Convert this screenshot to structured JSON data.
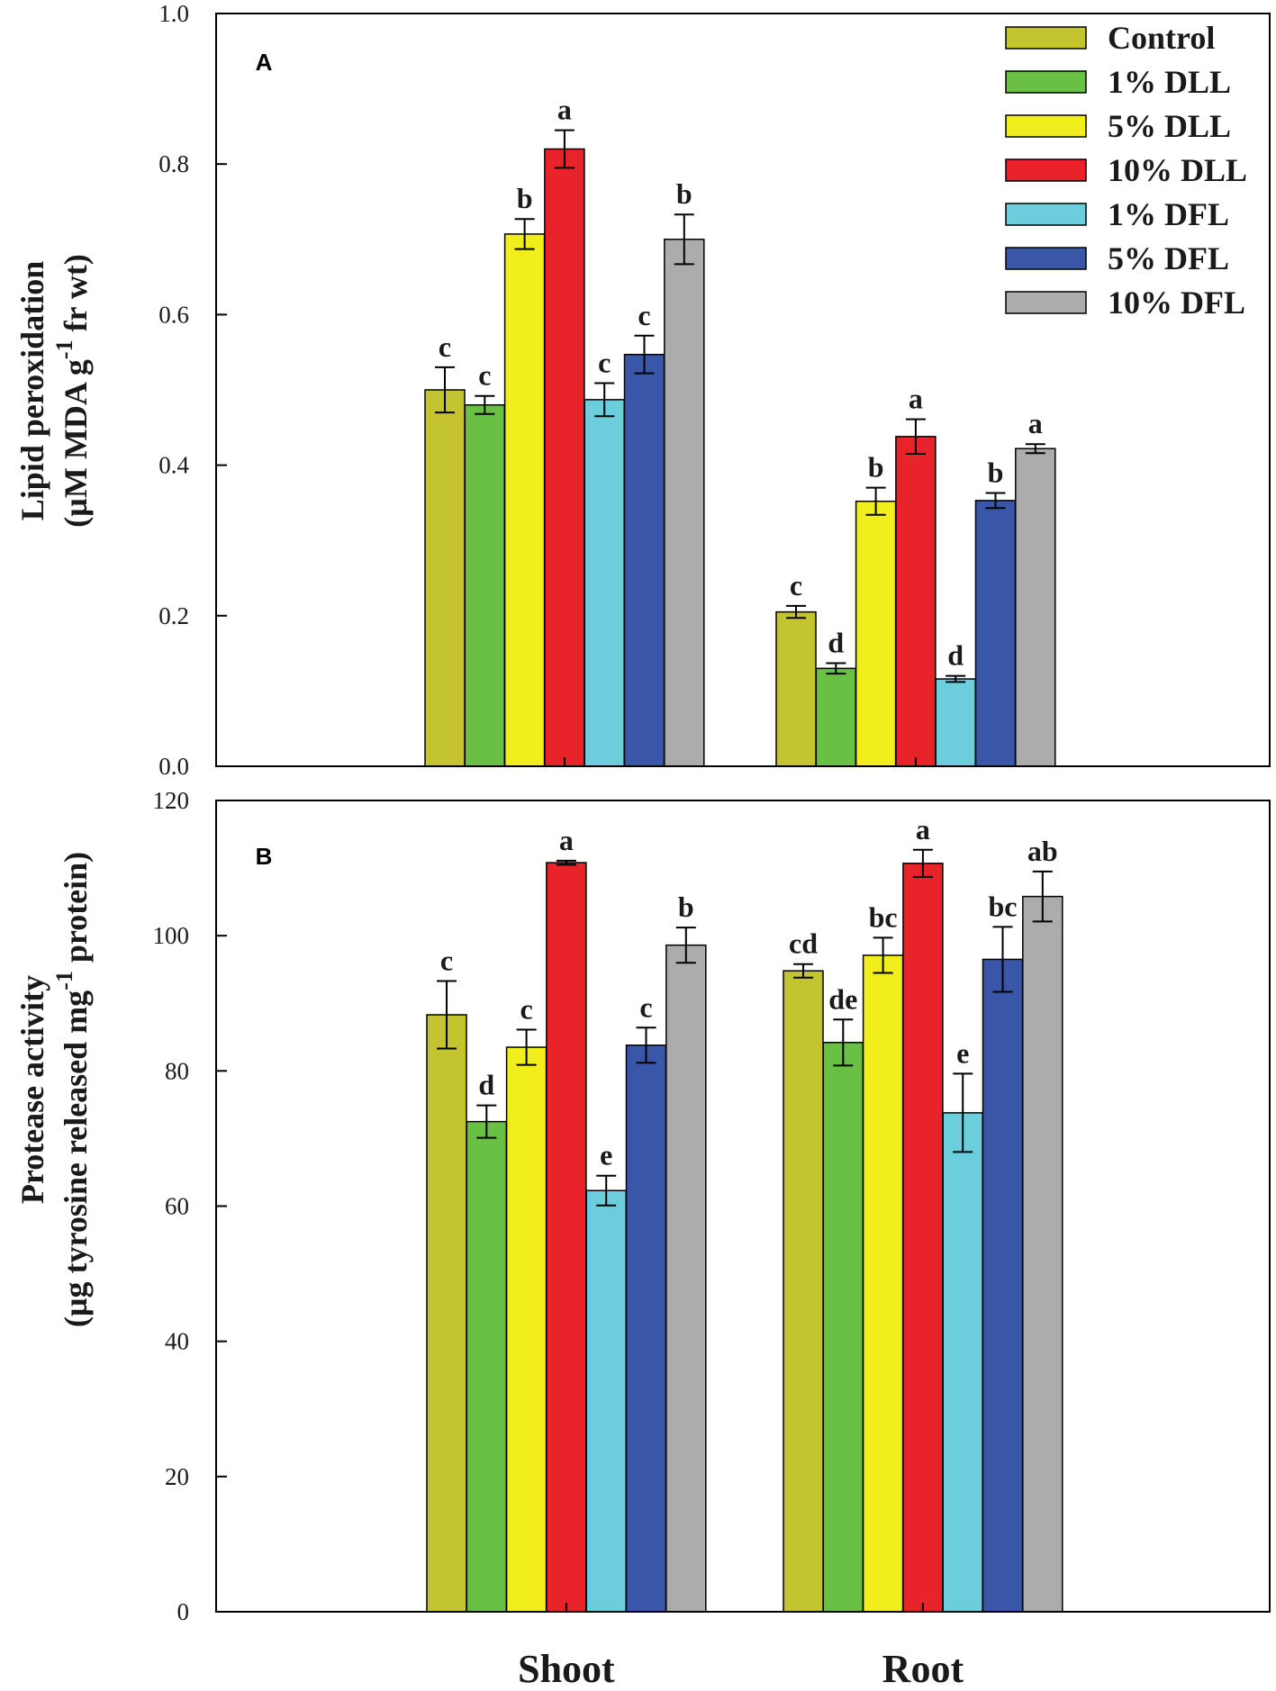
{
  "legend": [
    {
      "name": "Control",
      "color": "#c4c430"
    },
    {
      "name": "1% DLL",
      "color": "#6abf45"
    },
    {
      "name": "5% DLL",
      "color": "#f2ed1c"
    },
    {
      "name": "10% DLL",
      "color": "#e8232a"
    },
    {
      "name": "1% DFL",
      "color": "#6ccedd"
    },
    {
      "name": "5% DFL",
      "color": "#3a56a8"
    },
    {
      "name": "10% DFL",
      "color": "#acacac"
    }
  ],
  "chart_data": [
    {
      "type": "bar",
      "panel": "A",
      "categories": [
        "Shoot",
        "Root"
      ],
      "ylabel_line1": "Lipid peroxidation",
      "ylabel_line2_pre": "(µM MDA g",
      "ylabel_sup": "-1",
      "ylabel_line2_post": " fr wt)",
      "ylim": [
        0,
        1.0
      ],
      "yticks": [
        0.0,
        0.2,
        0.4,
        0.6,
        0.8,
        1.0
      ],
      "ytick_labels": [
        "0.0",
        "0.2",
        "0.4",
        "0.6",
        "0.8",
        "1.0"
      ],
      "series": [
        {
          "name": "Control",
          "values": [
            0.5,
            0.205
          ],
          "errors": [
            0.03,
            0.008
          ],
          "letters": [
            "c",
            "c"
          ]
        },
        {
          "name": "1% DLL",
          "values": [
            0.48,
            0.13
          ],
          "errors": [
            0.012,
            0.007
          ],
          "letters": [
            "c",
            "d"
          ]
        },
        {
          "name": "5% DLL",
          "values": [
            0.707,
            0.352
          ],
          "errors": [
            0.02,
            0.018
          ],
          "letters": [
            "b",
            "b"
          ]
        },
        {
          "name": "10% DLL",
          "values": [
            0.82,
            0.438
          ],
          "errors": [
            0.025,
            0.023
          ],
          "letters": [
            "a",
            "a"
          ]
        },
        {
          "name": "1% DFL",
          "values": [
            0.487,
            0.116
          ],
          "errors": [
            0.022,
            0.004
          ],
          "letters": [
            "c",
            "d"
          ]
        },
        {
          "name": "5% DFL",
          "values": [
            0.547,
            0.353
          ],
          "errors": [
            0.025,
            0.01
          ],
          "letters": [
            "c",
            "b"
          ]
        },
        {
          "name": "10% DFL",
          "values": [
            0.7,
            0.422
          ],
          "errors": [
            0.033,
            0.006
          ],
          "letters": [
            "b",
            "a"
          ]
        }
      ]
    },
    {
      "type": "bar",
      "panel": "B",
      "categories": [
        "Shoot",
        "Root"
      ],
      "ylabel_line1": "Protease activity",
      "ylabel_line2_pre": "(µg tyrosine released mg",
      "ylabel_sup": "-1",
      "ylabel_line2_post": " protein)",
      "ylim": [
        0,
        120
      ],
      "yticks": [
        0,
        20,
        40,
        60,
        80,
        100,
        120
      ],
      "ytick_labels": [
        "0",
        "20",
        "40",
        "60",
        "80",
        "100",
        "120"
      ],
      "series": [
        {
          "name": "Control",
          "values": [
            88.3,
            94.8
          ],
          "errors": [
            5.0,
            1.0
          ],
          "letters": [
            "c",
            "cd"
          ]
        },
        {
          "name": "1% DLL",
          "values": [
            72.5,
            84.2
          ],
          "errors": [
            2.4,
            3.4
          ],
          "letters": [
            "d",
            "de"
          ]
        },
        {
          "name": "5% DLL",
          "values": [
            83.5,
            97.1
          ],
          "errors": [
            2.6,
            2.6
          ],
          "letters": [
            "c",
            "bc"
          ]
        },
        {
          "name": "10% DLL",
          "values": [
            110.8,
            110.7
          ],
          "errors": [
            0.3,
            2.0
          ],
          "letters": [
            "a",
            "a"
          ]
        },
        {
          "name": "1% DFL",
          "values": [
            62.3,
            73.8
          ],
          "errors": [
            2.2,
            5.8
          ],
          "letters": [
            "e",
            "e"
          ]
        },
        {
          "name": "5% DFL",
          "values": [
            83.8,
            96.5
          ],
          "errors": [
            2.6,
            4.8
          ],
          "letters": [
            "c",
            "bc"
          ]
        },
        {
          "name": "10% DFL",
          "values": [
            98.6,
            105.8
          ],
          "errors": [
            2.6,
            3.7
          ],
          "letters": [
            "b",
            "ab"
          ]
        }
      ]
    }
  ]
}
